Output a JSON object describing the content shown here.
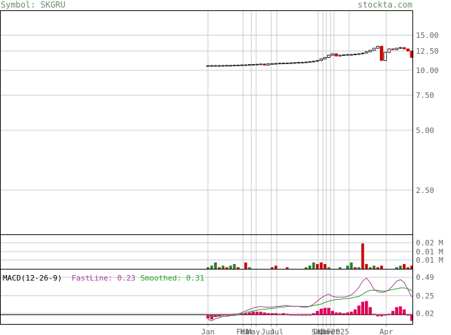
{
  "header": {
    "symbol_text": "Symbol: SKGRU",
    "site_text": "stockta.com"
  },
  "colors": {
    "up": "#2e7d2e",
    "down": "#cc0000",
    "macd_bar": "#e0005a",
    "fastline": "#a040a0",
    "smoothed": "#20a020",
    "grid": "#c8c8c8",
    "frame": "#000000",
    "label": "#666666"
  },
  "chart_data": [
    {
      "type": "candlestick",
      "panel": "price",
      "yscale": "log",
      "ylim": [
        1.5,
        20
      ],
      "y_ticks": [
        15.0,
        12.5,
        10.0,
        7.5,
        5.0,
        2.5
      ],
      "y_tick_labels": [
        "15.00",
        "12.50",
        "10.00",
        "7.50",
        "5.00",
        "2.50"
      ],
      "x_labels": [
        "Jan",
        "Feb",
        "Mar",
        "May",
        "Jun",
        "Jul",
        "Sep",
        "Oct",
        "Nov",
        "Dec",
        "2025",
        "Feb",
        "Apr"
      ],
      "close": [
        10.55,
        10.56,
        10.56,
        10.56,
        10.57,
        10.58,
        10.58,
        10.6,
        10.62,
        10.64,
        10.65,
        10.68,
        10.7,
        10.72,
        10.75,
        10.62,
        10.78,
        10.8,
        10.82,
        10.85,
        10.86,
        10.88,
        10.9,
        10.92,
        10.95,
        10.97,
        11.0,
        11.05,
        11.1,
        11.2,
        11.4,
        11.6,
        11.9,
        12.1,
        11.8,
        11.9,
        11.95,
        12.0,
        12.0,
        12.05,
        12.1,
        12.2,
        12.4,
        12.6,
        12.9,
        13.2,
        11.2,
        12.3,
        12.8,
        12.7,
        12.9,
        13.0,
        12.8,
        12.5,
        11.6
      ]
    },
    {
      "type": "bar",
      "panel": "volume",
      "y_tick_labels": [
        "0.02 M",
        "0.01 M",
        "0.01 M"
      ],
      "volume_m": [
        0.001,
        0.002,
        0.004,
        0.001,
        0.002,
        0.001,
        0.002,
        0.003,
        0.001,
        0.0,
        0.004,
        0.001,
        0.0,
        0.0,
        0.0,
        0.0,
        0.0,
        0.001,
        0.002,
        0.0,
        0.0,
        0.001,
        0.0,
        0.0,
        0.0,
        0.0,
        0.001,
        0.002,
        0.004,
        0.003,
        0.004,
        0.003,
        0.001,
        0.0,
        0.0,
        0.001,
        0.0,
        0.002,
        0.004,
        0.001,
        0.001,
        0.016,
        0.003,
        0.001,
        0.002,
        0.001,
        0.002,
        0.0,
        0.0,
        0.0,
        0.001,
        0.002,
        0.003,
        0.001,
        0.002
      ],
      "up_flags": [
        1,
        1,
        1,
        0,
        1,
        0,
        1,
        1,
        0,
        1,
        0,
        1,
        1,
        1,
        1,
        1,
        1,
        0,
        0,
        1,
        1,
        0,
        1,
        1,
        1,
        1,
        1,
        1,
        1,
        0,
        0,
        0,
        1,
        1,
        1,
        1,
        1,
        1,
        1,
        0,
        1,
        0,
        0,
        1,
        1,
        0,
        0,
        1,
        1,
        1,
        1,
        1,
        0,
        0,
        0
      ]
    },
    {
      "type": "line",
      "panel": "macd",
      "title": "MACD(12-26-9)",
      "fast_label": "FastLine: 0.23",
      "smoothed_label": "Smoothed: 0.31",
      "ylim": [
        -0.12,
        0.6
      ],
      "y_tick_labels": [
        "0.49",
        "0.25",
        "0.02"
      ],
      "y_tick_values": [
        0.49,
        0.25,
        0.02
      ],
      "fast": [
        -0.06,
        -0.08,
        -0.05,
        -0.04,
        -0.02,
        -0.02,
        -0.01,
        0.0,
        0.01,
        0.03,
        0.05,
        0.07,
        0.09,
        0.1,
        0.11,
        0.1,
        0.1,
        0.1,
        0.11,
        0.11,
        0.12,
        0.12,
        0.11,
        0.11,
        0.11,
        0.1,
        0.1,
        0.11,
        0.14,
        0.18,
        0.22,
        0.25,
        0.27,
        0.24,
        0.23,
        0.23,
        0.23,
        0.24,
        0.26,
        0.3,
        0.36,
        0.44,
        0.48,
        0.42,
        0.33,
        0.3,
        0.29,
        0.3,
        0.33,
        0.38,
        0.44,
        0.46,
        0.42,
        0.33,
        0.23
      ],
      "smoothed": [
        -0.01,
        -0.02,
        -0.02,
        -0.02,
        -0.02,
        -0.02,
        -0.01,
        -0.01,
        0.0,
        0.01,
        0.03,
        0.04,
        0.05,
        0.06,
        0.07,
        0.07,
        0.08,
        0.08,
        0.09,
        0.1,
        0.1,
        0.11,
        0.11,
        0.11,
        0.11,
        0.11,
        0.11,
        0.11,
        0.12,
        0.13,
        0.14,
        0.16,
        0.18,
        0.19,
        0.2,
        0.2,
        0.21,
        0.21,
        0.22,
        0.23,
        0.24,
        0.27,
        0.3,
        0.32,
        0.32,
        0.32,
        0.31,
        0.31,
        0.32,
        0.33,
        0.34,
        0.35,
        0.35,
        0.34,
        0.31
      ],
      "histogram": [
        -0.05,
        -0.06,
        -0.03,
        -0.02,
        0.0,
        0.0,
        0.0,
        0.01,
        0.01,
        0.02,
        0.02,
        0.03,
        0.04,
        0.04,
        0.04,
        0.03,
        0.02,
        0.02,
        0.02,
        0.01,
        0.02,
        0.01,
        0.0,
        0.0,
        0.0,
        -0.01,
        -0.01,
        0.0,
        0.02,
        0.05,
        0.08,
        0.09,
        0.09,
        0.05,
        0.03,
        0.03,
        0.02,
        0.03,
        0.04,
        0.07,
        0.12,
        0.17,
        0.18,
        0.1,
        0.01,
        -0.02,
        -0.02,
        -0.01,
        0.01,
        0.05,
        0.1,
        0.11,
        0.07,
        -0.01,
        -0.08
      ]
    }
  ]
}
